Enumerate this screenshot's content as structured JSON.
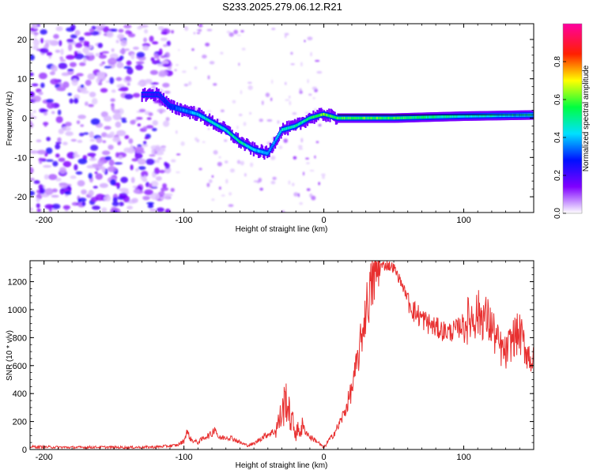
{
  "figure_title": "S233.2025.279.06.12.R21",
  "chart_data": [
    {
      "type": "heatmap",
      "title": "",
      "xlabel": "Height of straight line (km)",
      "ylabel": "Frequency (Hz)",
      "xlim": [
        -210,
        150
      ],
      "ylim": [
        -24,
        24
      ],
      "xticks": [
        -200,
        -100,
        0,
        100
      ],
      "yticks": [
        -20,
        -10,
        0,
        10,
        20
      ],
      "colorbar": {
        "label": "Normalized spectral amplitude",
        "range": [
          0,
          1
        ],
        "ticks": [
          0.0,
          0.2,
          0.4,
          0.6,
          0.8
        ],
        "colormap": "rainbow (purple-blue-cyan-green-yellow-red-magenta)"
      },
      "ridge": {
        "x": [
          -130,
          -118,
          -110,
          -100,
          -90,
          -80,
          -70,
          -60,
          -50,
          -40,
          -30,
          -20,
          -10,
          0,
          10,
          50,
          100,
          150
        ],
        "freq": [
          6,
          6,
          3,
          2,
          1,
          -1,
          -3,
          -6,
          -8,
          -9,
          -3,
          -2,
          0,
          1,
          0,
          0,
          0.5,
          0.8
        ],
        "amplitude": [
          0.2,
          0.2,
          0.25,
          0.35,
          0.4,
          0.45,
          0.45,
          0.5,
          0.4,
          0.35,
          0.45,
          0.45,
          0.5,
          0.6,
          0.55,
          0.55,
          0.45,
          0.4
        ]
      },
      "noise_region_x": [
        -210,
        -110
      ],
      "grid": false
    },
    {
      "type": "line",
      "title": "",
      "xlabel": "Height of straight line (km)",
      "ylabel": "SNR (10 * v/v)",
      "xlim": [
        -210,
        150
      ],
      "ylim": [
        0,
        1350
      ],
      "xticks": [
        -200,
        -100,
        0,
        100
      ],
      "yticks": [
        0,
        200,
        400,
        600,
        800,
        1000,
        1200
      ],
      "color": "#e83030",
      "series": [
        {
          "name": "",
          "x": [
            -210,
            -200,
            -180,
            -160,
            -140,
            -120,
            -105,
            -100,
            -98,
            -95,
            -90,
            -85,
            -80,
            -78,
            -75,
            -70,
            -65,
            -60,
            -55,
            -50,
            -45,
            -40,
            -35,
            -30,
            -27,
            -25,
            -22,
            -20,
            -15,
            -10,
            -5,
            -2,
            0,
            3,
            5,
            10,
            15,
            20,
            25,
            30,
            35,
            40,
            45,
            50,
            55,
            60,
            65,
            70,
            75,
            80,
            85,
            90,
            95,
            100,
            105,
            110,
            115,
            120,
            125,
            130,
            135,
            140,
            145,
            150
          ],
          "y": [
            20,
            18,
            15,
            17,
            15,
            18,
            30,
            60,
            130,
            70,
            50,
            90,
            110,
            160,
            80,
            90,
            80,
            50,
            30,
            40,
            80,
            110,
            130,
            250,
            380,
            260,
            180,
            120,
            160,
            90,
            60,
            30,
            10,
            60,
            80,
            160,
            270,
            430,
            680,
            1000,
            1200,
            1310,
            1320,
            1300,
            1200,
            1080,
            980,
            940,
            900,
            870,
            850,
            840,
            860,
            900,
            940,
            970,
            950,
            880,
            740,
            680,
            800,
            830,
            700,
            620
          ]
        }
      ],
      "grid": false
    }
  ]
}
